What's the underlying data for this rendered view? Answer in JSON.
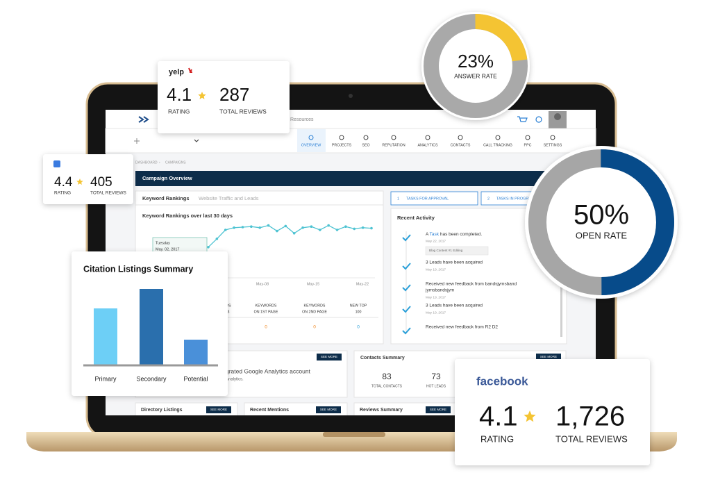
{
  "yelp_card": {
    "brand": "yelp",
    "rating": "4.1",
    "reviews": "287",
    "rating_label": "RATING",
    "reviews_label": "TOTAL REVIEWS"
  },
  "google_card": {
    "rating": "4.4",
    "reviews": "405",
    "rating_label": "RATING",
    "reviews_label": "TOTAL REVIEWS"
  },
  "facebook_card": {
    "brand": "facebook",
    "rating": "4.1",
    "reviews": "1,726",
    "rating_label": "RATING",
    "reviews_label": "TOTAL REVIEWS"
  },
  "answer_rate": {
    "value": 23,
    "value_label": "23%",
    "label": "ANSWER RATE",
    "color": "#f4c433",
    "track": "#a9a9a9"
  },
  "open_rate": {
    "value": 50,
    "value_label": "50%",
    "label": "OPEN RATE",
    "color": "#074b8a",
    "track": "#a6a6a6"
  },
  "citation": {
    "title": "Citation Listings Summary",
    "categories": [
      "Primary",
      "Secondary",
      "Potential"
    ],
    "values": [
      81,
      109,
      36
    ],
    "ylim": [
      0,
      120
    ],
    "colors": [
      "#6dcff6",
      "#2a6fad",
      "#4a90d9"
    ]
  },
  "dashboard": {
    "resources": "Resources",
    "nav": [
      "OVERVIEW",
      "PROJECTS",
      "SEO",
      "REPUTATION",
      "ANALYTICS",
      "CONTACTS",
      "CALL TRACKING",
      "PPC",
      "SETTINGS"
    ],
    "breadcrumb": [
      "DASHBOARD",
      "CAMPAIGNS"
    ],
    "banner": "Campaign Overview",
    "tabs": [
      "Keyword Rankings",
      "Website Traffic and Leads"
    ],
    "chart_title": "Keyword Rankings over last 30 days",
    "tooltip": [
      "Tuesday",
      "May. 02, 2017"
    ],
    "x_labels": [
      "May-08",
      "May-15",
      "May-22"
    ],
    "line": {
      "values": [
        49,
        64,
        80,
        84,
        85,
        86,
        84,
        88,
        78,
        87,
        74,
        84,
        86,
        80,
        88,
        80,
        86,
        82,
        84,
        83
      ],
      "ylim": [
        0,
        100
      ],
      "color": "#4ec3d2"
    },
    "stats": [
      {
        "label": [
          "DS",
          "3"
        ]
      },
      {
        "label": [
          "KEYWORDS",
          "ON 1ST PAGE"
        ],
        "value": "0"
      },
      {
        "label": [
          "KEYWORDS",
          "ON 2ND PAGE"
        ],
        "value": "0"
      },
      {
        "label": [
          "NEW TOP",
          "100"
        ],
        "value": "0"
      }
    ],
    "tasks": [
      {
        "num": "1",
        "label": "TASKS FOR APPROVAL"
      },
      {
        "num": "2",
        "label": "TASKS IN PROGRESS"
      }
    ],
    "activity": {
      "title": "Recent Activity",
      "items": [
        {
          "lines": [
            "A ",
            "Task",
            " has been completed."
          ],
          "date": "May 22, 2017",
          "tag": "Blog Content #1 Editing"
        },
        {
          "lines": [
            "3 Leads have been acquired"
          ],
          "date": "May 19, 2017"
        },
        {
          "lines": [
            "Received new feedback from bandsjymsband",
            "jymsbandsjym"
          ],
          "date": "May 19, 2017"
        },
        {
          "lines": [
            "3 Leads have been acquired"
          ],
          "date": "May 19, 2017"
        },
        {
          "lines": [
            "Received new feedback from R2 D2"
          ]
        }
      ]
    },
    "analytics": {
      "see_more": "SEE MORE",
      "lines": [
        "grated Google Analytics account",
        "Analytics."
      ]
    },
    "contacts": {
      "title": "Contacts Summary",
      "see_more": "SEE MORE",
      "stats": [
        {
          "value": "83",
          "label": "TOTAL CONTACTS"
        },
        {
          "value": "73",
          "label": "HOT LEADS"
        }
      ]
    },
    "bottom": [
      {
        "title": "Directory Listings",
        "see_more": "SEE MORE"
      },
      {
        "title": "Recent Mentions",
        "see_more": "SEE MORE"
      },
      {
        "title": "Reviews Summary",
        "see_more": "SEE MORE"
      }
    ]
  }
}
